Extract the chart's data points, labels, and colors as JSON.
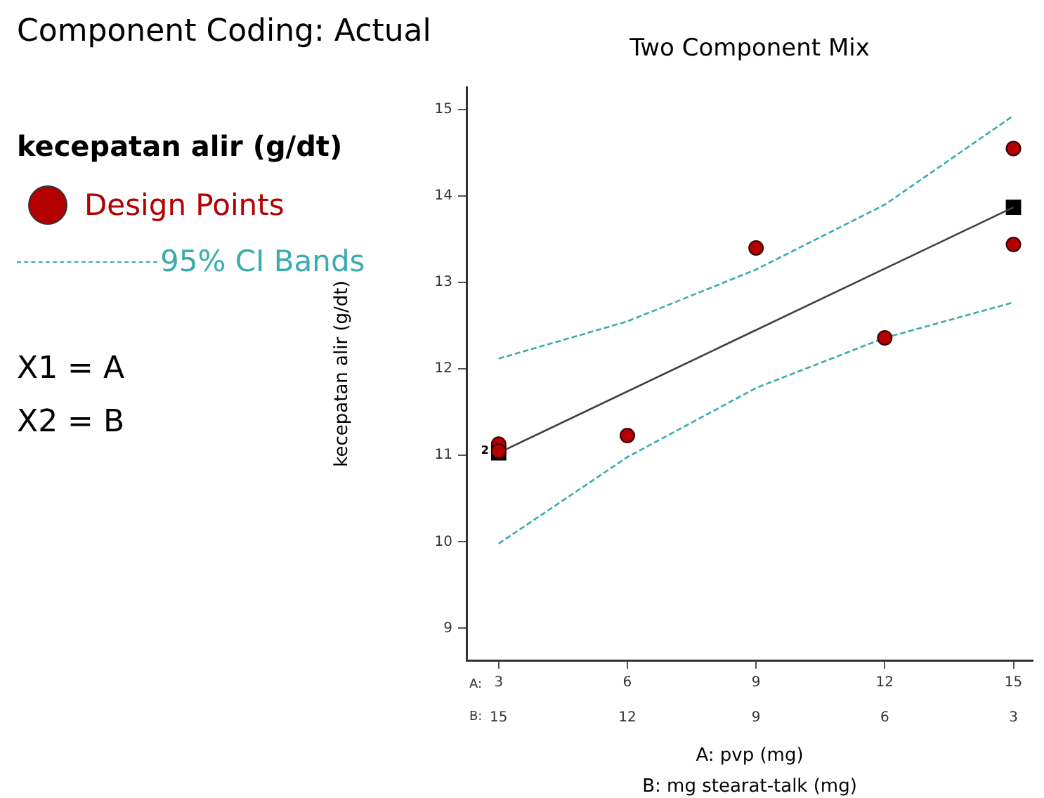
{
  "chart_data": {
    "type": "scatter",
    "title": "Two Component Mix",
    "xlabel": "A: pvp (mg)",
    "x2label": "B: mg stearat-talk (mg)",
    "ylabel": "kecepatan alir (g/dt)",
    "legend_title": "kecepatan alir (g/dt)",
    "legend": "left",
    "annotations": [
      "Component Coding: Actual",
      "X1 = A",
      "X2 = B",
      "A:",
      "B:",
      {
        "text": "2",
        "x": 3,
        "y": 11.05
      }
    ],
    "xlim": [
      2.25,
      15.45
    ],
    "xticks": [
      3,
      6,
      9,
      12,
      15
    ],
    "x2lim": [
      15.75,
      2.55
    ],
    "x2ticks": [
      15,
      12,
      9,
      6,
      3
    ],
    "ylim": [
      8.63,
      15.26
    ],
    "yticks": [
      9,
      10,
      11,
      12,
      13,
      14,
      15
    ],
    "grid": false,
    "series": [
      {
        "name": "Design Points",
        "type": "scatter",
        "marker": "circle",
        "color": "#b30000",
        "x": [
          3,
          3,
          6,
          9,
          12,
          15,
          15
        ],
        "values": [
          11.13,
          11.05,
          11.23,
          13.4,
          12.36,
          14.55,
          13.44
        ]
      },
      {
        "type": "line",
        "marker": "none",
        "line_style": "solid",
        "color": "#404040",
        "x": [
          3,
          15
        ],
        "values": [
          11.03,
          13.87
        ]
      },
      {
        "type": "scatter",
        "marker": "square",
        "color": "#000000",
        "x": [
          3,
          15
        ],
        "values": [
          11.03,
          13.87
        ]
      },
      {
        "name": "95% CI Bands",
        "type": "line",
        "marker": "none",
        "line_style": "dashed",
        "color": "#3aacac",
        "x": [
          3,
          6,
          9,
          12,
          15
        ],
        "values": [
          12.12,
          12.55,
          13.15,
          13.9,
          14.93
        ]
      },
      {
        "type": "line",
        "marker": "none",
        "line_style": "dashed",
        "color": "#3aacac",
        "x": [
          3,
          6,
          9,
          12,
          15
        ],
        "values": [
          9.98,
          10.98,
          11.78,
          12.36,
          12.77
        ]
      }
    ]
  }
}
